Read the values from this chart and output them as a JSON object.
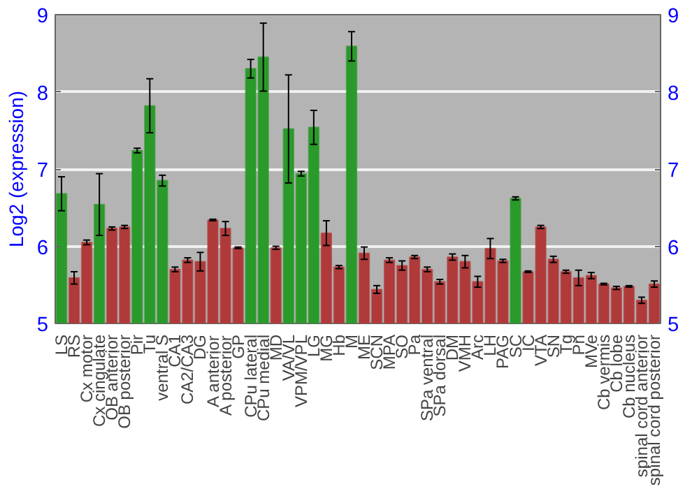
{
  "chart_data": {
    "type": "bar",
    "ylabel": "Log2 (expression)",
    "categories": [
      "LS",
      "RS",
      "Cx motor",
      "Cx cingulate",
      "OB anterior",
      "OB posterior",
      "Pir",
      "Tu",
      "ventral S",
      "CA1",
      "CA2/CA3",
      "DG",
      "A anterior",
      "A posterior",
      "GP",
      "CPu lateral",
      "CPu medial",
      "MD",
      "VA/VL",
      "VPM/VPL",
      "LG",
      "MG",
      "Hb",
      "M",
      "ME",
      "SCN",
      "MPA",
      "SO",
      "Pa",
      "SPa ventral",
      "SPa dorsal",
      "DM",
      "VMH",
      "Arc",
      "LH",
      "PAG",
      "SC",
      "IC",
      "VTA",
      "SN",
      "Tg",
      "Pn",
      "MVe",
      "Cb vermis",
      "Cb lobe",
      "Cb nucleus",
      "spinal cord anterior",
      "spinal cord posterior"
    ],
    "values": [
      6.68,
      5.59,
      6.05,
      6.54,
      6.23,
      6.25,
      7.24,
      7.82,
      6.85,
      5.7,
      5.82,
      5.8,
      6.34,
      6.23,
      5.98,
      8.3,
      8.45,
      5.98,
      7.52,
      6.94,
      7.54,
      6.17,
      5.73,
      8.59,
      5.91,
      5.44,
      5.82,
      5.75,
      5.86,
      5.7,
      5.54,
      5.86,
      5.8,
      5.54,
      5.97,
      5.81,
      6.62,
      5.67,
      6.25,
      5.83,
      5.67,
      5.59,
      5.62,
      5.51,
      5.46,
      5.48,
      5.3,
      5.51
    ],
    "errors": [
      0.22,
      0.08,
      0.03,
      0.4,
      0.02,
      0.02,
      0.03,
      0.35,
      0.07,
      0.03,
      0.03,
      0.12,
      0.01,
      0.09,
      0.01,
      0.12,
      0.44,
      0.02,
      0.7,
      0.03,
      0.22,
      0.16,
      0.02,
      0.19,
      0.08,
      0.05,
      0.03,
      0.06,
      0.02,
      0.03,
      0.03,
      0.04,
      0.08,
      0.07,
      0.13,
      0.02,
      0.02,
      0.01,
      0.02,
      0.04,
      0.02,
      0.1,
      0.04,
      0.01,
      0.02,
      0.01,
      0.04,
      0.04
    ],
    "colors": [
      "#2a9a2a",
      "#b03a3a",
      "#b03a3a",
      "#2a9a2a",
      "#b03a3a",
      "#b03a3a",
      "#2a9a2a",
      "#2a9a2a",
      "#2a9a2a",
      "#b03a3a",
      "#b03a3a",
      "#b03a3a",
      "#b03a3a",
      "#b03a3a",
      "#b03a3a",
      "#2a9a2a",
      "#2a9a2a",
      "#b03a3a",
      "#2a9a2a",
      "#2a9a2a",
      "#2a9a2a",
      "#b03a3a",
      "#b03a3a",
      "#2a9a2a",
      "#b03a3a",
      "#b03a3a",
      "#b03a3a",
      "#b03a3a",
      "#b03a3a",
      "#b03a3a",
      "#b03a3a",
      "#b03a3a",
      "#b03a3a",
      "#b03a3a",
      "#b03a3a",
      "#b03a3a",
      "#2a9a2a",
      "#b03a3a",
      "#b03a3a",
      "#b03a3a",
      "#b03a3a",
      "#b03a3a",
      "#b03a3a",
      "#b03a3a",
      "#b03a3a",
      "#b03a3a",
      "#b03a3a",
      "#b03a3a"
    ],
    "ylim": [
      5,
      9
    ],
    "yticks": [
      5,
      6,
      7,
      8,
      9
    ],
    "y2lim": [
      5,
      9
    ],
    "y2ticks": [
      5,
      6,
      7,
      8,
      9
    ],
    "grid": "y"
  }
}
